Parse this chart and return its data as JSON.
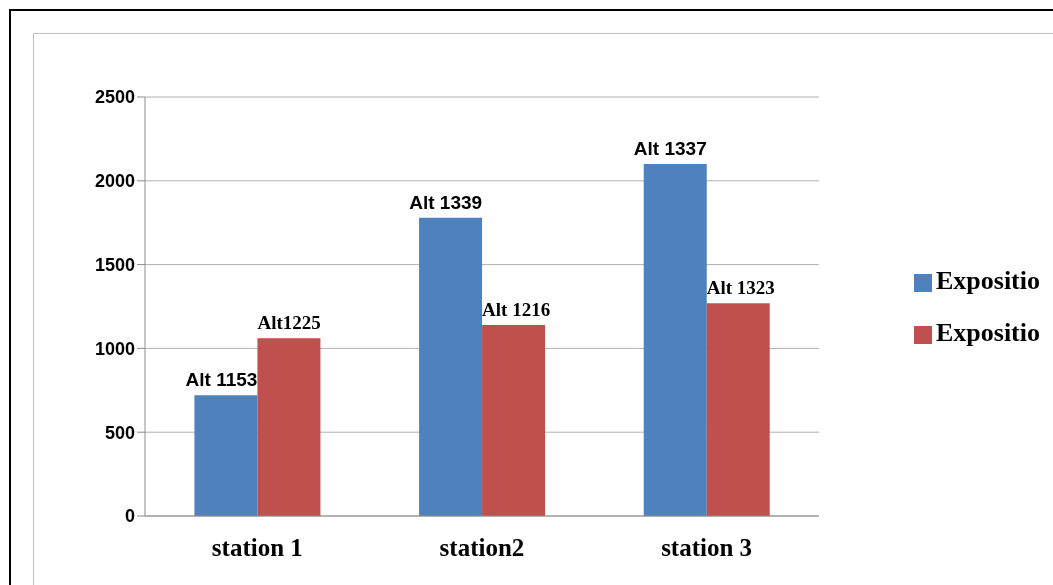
{
  "chart_data": {
    "type": "bar",
    "categories": [
      "station 1",
      "station2",
      "station 3"
    ],
    "series": [
      {
        "name": "Expositio",
        "color": "#4f81bd",
        "values": [
          720,
          1780,
          2100
        ],
        "value_labels": [
          "Alt 1153",
          "Alt 1339",
          "Alt 1337"
        ]
      },
      {
        "name": "Expositio",
        "color": "#c0504d",
        "values": [
          1060,
          1140,
          1270
        ],
        "value_labels": [
          "Alt1225",
          "Alt 1216",
          "Alt 1323"
        ]
      }
    ],
    "ylim": [
      0,
      2500
    ],
    "yticks": [
      0,
      500,
      1000,
      1500,
      2000,
      2500
    ],
    "grid": "y",
    "legend": "right"
  }
}
